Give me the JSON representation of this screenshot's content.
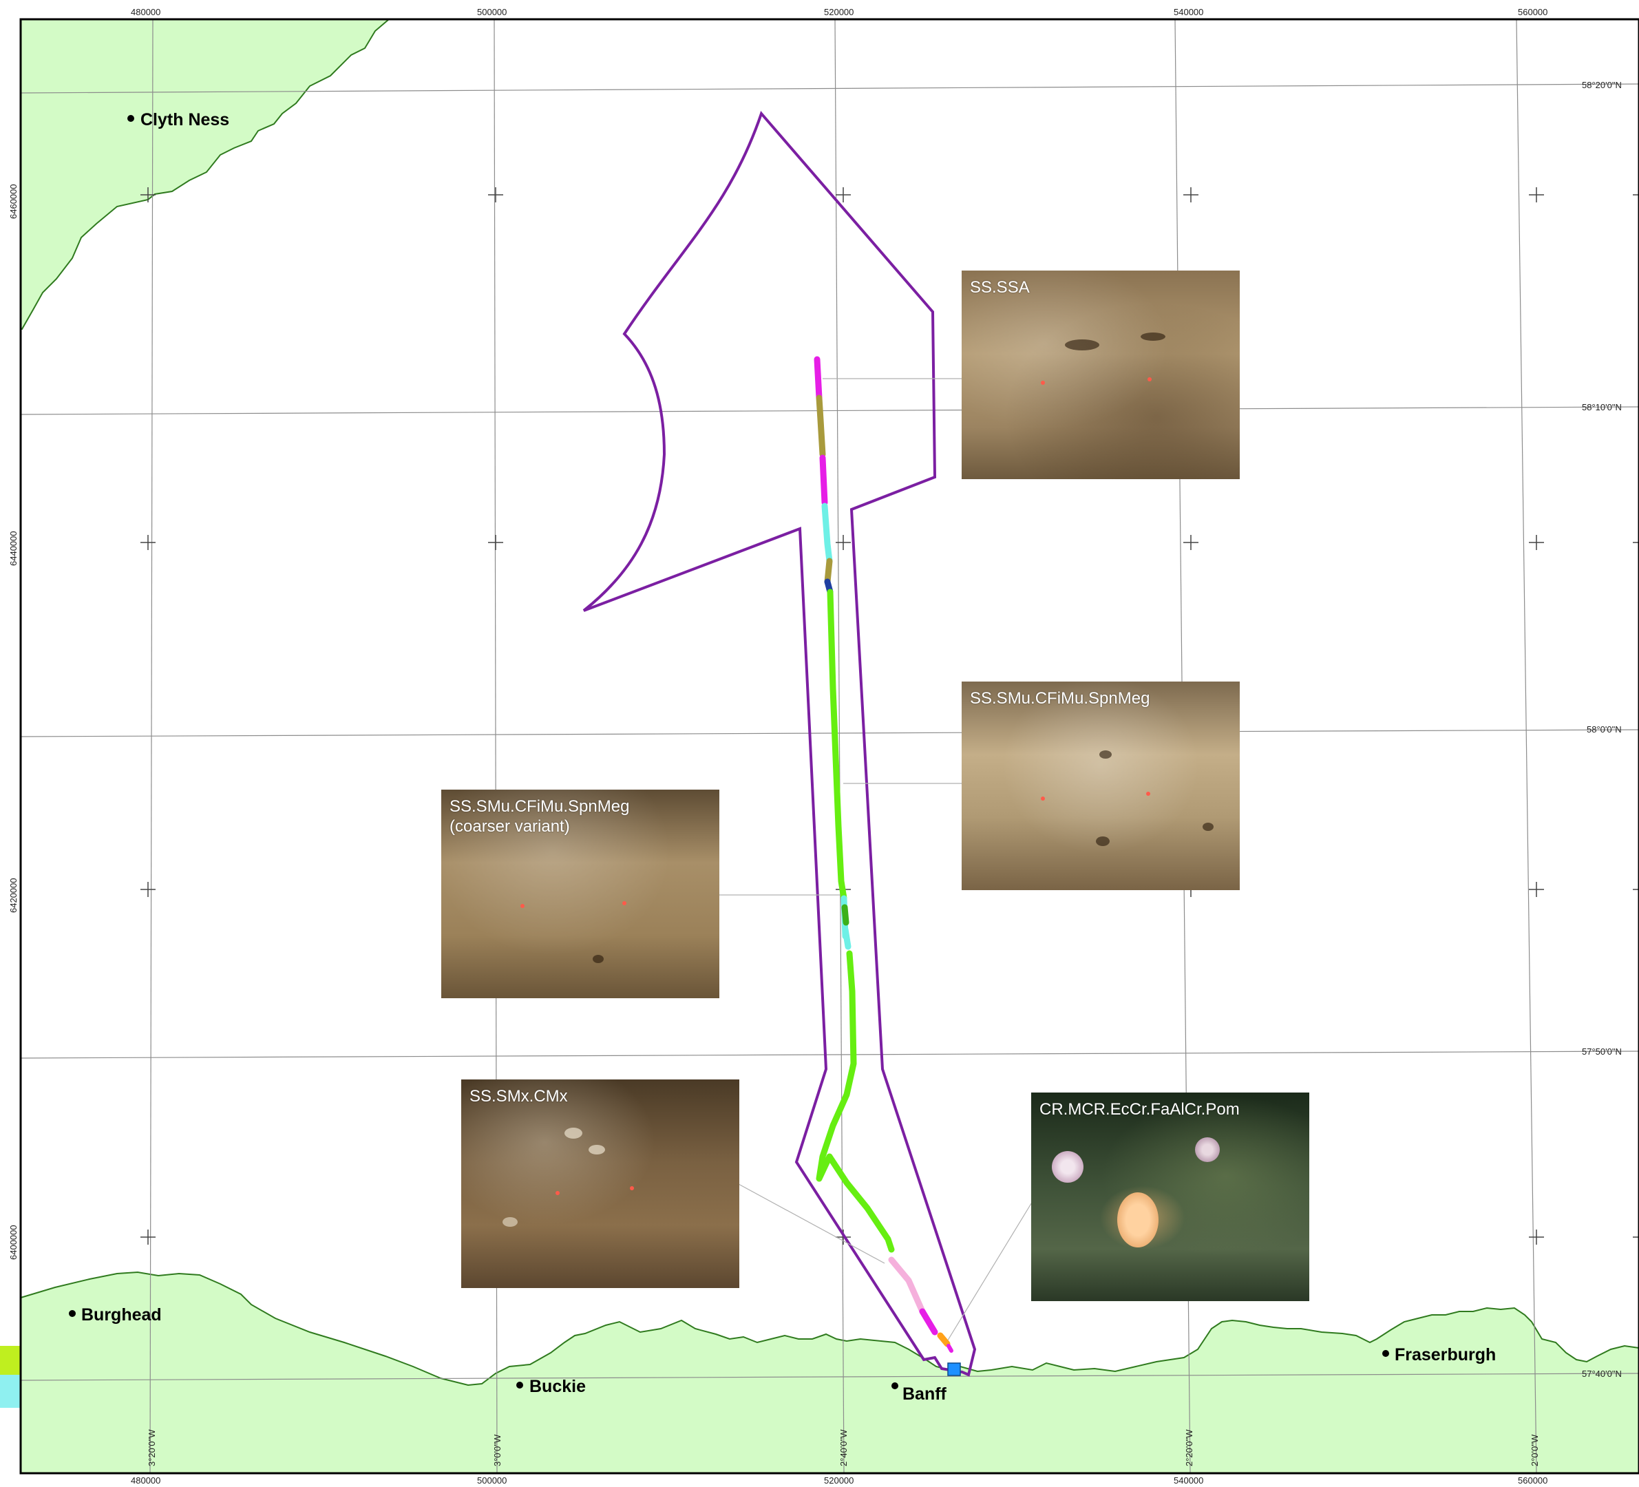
{
  "map": {
    "colors": {
      "land": "#d3fbc6",
      "coast": "#2f7a1e",
      "sea": "#ffffff",
      "boundary": "#7b1fa2",
      "grid": "#8c8c8c"
    },
    "easting_ticks": [
      "480000",
      "500000",
      "520000",
      "540000",
      "560000"
    ],
    "northing_ticks": [
      "6460000",
      "6440000",
      "6420000",
      "6400000"
    ],
    "latitude_labels": [
      "58°20'0\"N",
      "58°10'0\"N",
      "58°0'0\"N",
      "57°50'0\"N",
      "57°40'0\"N"
    ],
    "longitude_labels": [
      "3°20'0\"W",
      "3°0'0\"W",
      "2°40'0\"W",
      "2°20'0\"W",
      "2°0'0\"W"
    ],
    "places": [
      {
        "name": "Clyth Ness"
      },
      {
        "name": "Burghead"
      },
      {
        "name": "Buckie"
      },
      {
        "name": "Banff"
      },
      {
        "name": "Fraserburgh"
      }
    ],
    "track_colors": [
      "#e61ee6",
      "#a89a3c",
      "#6ef0e6",
      "#66ee11",
      "#1f3fa0",
      "#f5b0dc",
      "#ffa21a"
    ],
    "start_marker_color": "#1e90ff",
    "legend_swatches": [
      "#bfef1f",
      "#8ff0f0"
    ]
  },
  "photos": [
    {
      "caption": "SS.SSA",
      "style": "sand",
      "icon": "seabed-sand-photo"
    },
    {
      "caption": "SS.SMu.CFiMu.SpnMeg",
      "style": "sand2",
      "icon": "seabed-mud-photo"
    },
    {
      "caption": "SS.SMu.CFiMu.SpnMeg\n(coarser variant)",
      "style": "sand3",
      "icon": "seabed-coarse-mud-photo"
    },
    {
      "caption": "SS.SMx.CMx",
      "style": "gravel",
      "icon": "seabed-mixed-sediment-photo"
    },
    {
      "caption": "CR.MCR.EcCr.FaAlCr.Pom",
      "style": "reef",
      "icon": "rocky-reef-photo"
    }
  ]
}
